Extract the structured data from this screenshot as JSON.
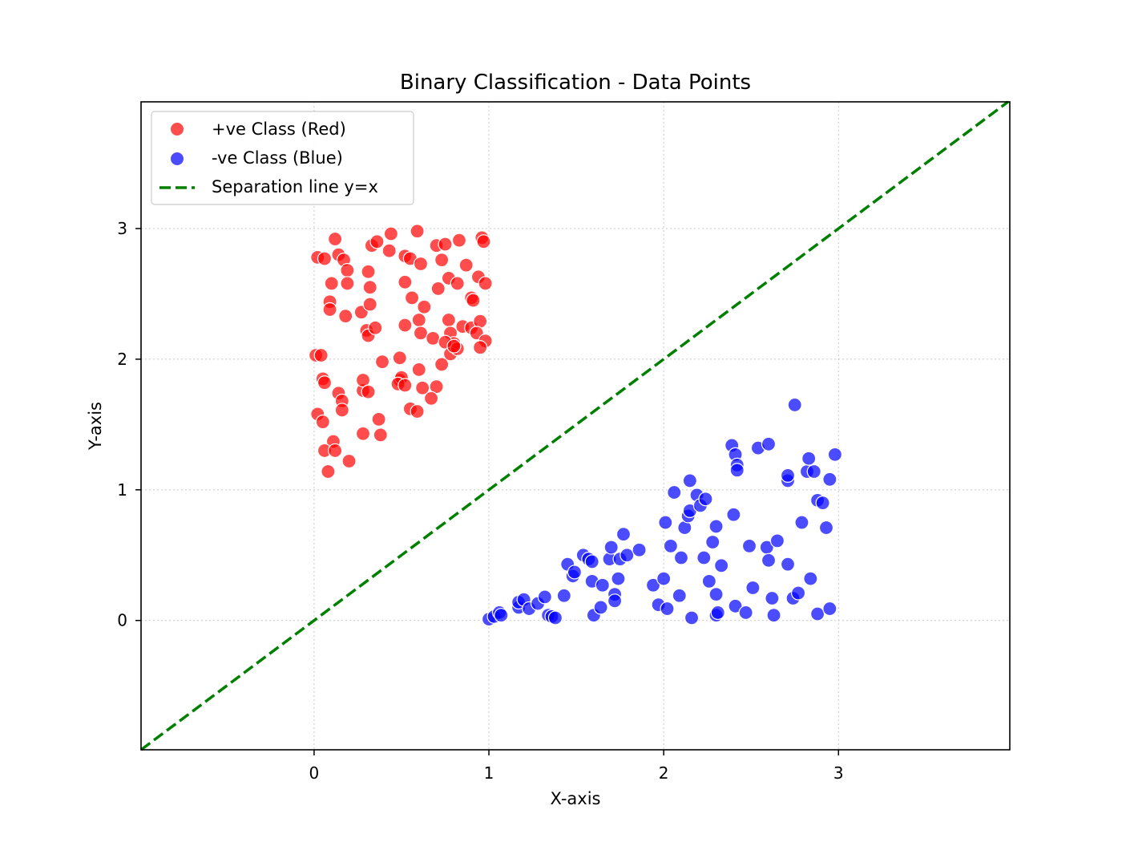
{
  "chart_data": {
    "type": "scatter",
    "title": "Binary Classification - Data Points",
    "xlabel": "X-axis",
    "ylabel": "Y-axis",
    "xlim": [
      -0.99,
      3.98
    ],
    "ylim": [
      -0.99,
      3.97
    ],
    "xticks": [
      0,
      1,
      2,
      3
    ],
    "yticks": [
      0,
      1,
      2,
      3
    ],
    "grid": true,
    "legend_position": "upper left",
    "legend": [
      "+ve Class (Red)",
      "-ve Class (Blue)",
      "Separation line y=x"
    ],
    "colors": {
      "positive": "#ff0000",
      "negative": "#0000ff",
      "line": "#008000"
    },
    "lines": [
      {
        "name": "Separation line y=x",
        "x": [
          -0.99,
          3.98
        ],
        "y": [
          -0.99,
          3.98
        ],
        "style": "dashed",
        "color": "#008000"
      }
    ],
    "series": [
      {
        "name": "+ve Class (Red)",
        "color": "#ff0000",
        "points": [
          [
            0.12,
            2.92
          ],
          [
            0.02,
            2.78
          ],
          [
            0.06,
            2.77
          ],
          [
            0.14,
            2.8
          ],
          [
            0.17,
            2.76
          ],
          [
            0.19,
            2.68
          ],
          [
            0.33,
            2.87
          ],
          [
            0.36,
            2.9
          ],
          [
            0.43,
            2.83
          ],
          [
            0.44,
            2.96
          ],
          [
            0.59,
            2.98
          ],
          [
            0.52,
            2.79
          ],
          [
            0.55,
            2.77
          ],
          [
            0.61,
            2.73
          ],
          [
            0.7,
            2.87
          ],
          [
            0.75,
            2.88
          ],
          [
            0.83,
            2.91
          ],
          [
            0.96,
            2.93
          ],
          [
            0.97,
            2.9
          ],
          [
            0.1,
            2.58
          ],
          [
            0.19,
            2.58
          ],
          [
            0.31,
            2.67
          ],
          [
            0.32,
            2.55
          ],
          [
            0.52,
            2.59
          ],
          [
            0.56,
            2.47
          ],
          [
            0.71,
            2.54
          ],
          [
            0.73,
            2.76
          ],
          [
            0.77,
            2.62
          ],
          [
            0.82,
            2.58
          ],
          [
            0.87,
            2.72
          ],
          [
            0.94,
            2.63
          ],
          [
            0.98,
            2.58
          ],
          [
            0.9,
            2.47
          ],
          [
            0.91,
            2.45
          ],
          [
            0.09,
            2.44
          ],
          [
            0.09,
            2.38
          ],
          [
            0.18,
            2.33
          ],
          [
            0.27,
            2.36
          ],
          [
            0.32,
            2.42
          ],
          [
            0.3,
            2.22
          ],
          [
            0.31,
            2.18
          ],
          [
            0.35,
            2.24
          ],
          [
            0.52,
            2.26
          ],
          [
            0.6,
            2.3
          ],
          [
            0.63,
            2.4
          ],
          [
            0.61,
            2.2
          ],
          [
            0.68,
            2.16
          ],
          [
            0.77,
            2.3
          ],
          [
            0.78,
            2.2
          ],
          [
            0.8,
            2.12
          ],
          [
            0.75,
            2.13
          ],
          [
            0.85,
            2.25
          ],
          [
            0.9,
            2.24
          ],
          [
            0.95,
            2.29
          ],
          [
            0.93,
            2.2
          ],
          [
            0.98,
            2.14
          ],
          [
            0.95,
            2.09
          ],
          [
            0.01,
            2.03
          ],
          [
            0.04,
            2.03
          ],
          [
            0.39,
            1.98
          ],
          [
            0.49,
            1.84
          ],
          [
            0.5,
            1.86
          ],
          [
            0.48,
            1.81
          ],
          [
            0.52,
            1.8
          ],
          [
            0.49,
            2.01
          ],
          [
            0.6,
            1.92
          ],
          [
            0.73,
            1.96
          ],
          [
            0.78,
            2.04
          ],
          [
            0.82,
            2.08
          ],
          [
            0.8,
            2.1
          ],
          [
            0.05,
            1.85
          ],
          [
            0.06,
            1.82
          ],
          [
            0.14,
            1.74
          ],
          [
            0.16,
            1.68
          ],
          [
            0.16,
            1.61
          ],
          [
            0.28,
            1.76
          ],
          [
            0.28,
            1.84
          ],
          [
            0.31,
            1.75
          ],
          [
            0.62,
            1.78
          ],
          [
            0.7,
            1.79
          ],
          [
            0.67,
            1.7
          ],
          [
            0.55,
            1.62
          ],
          [
            0.59,
            1.6
          ],
          [
            0.02,
            1.58
          ],
          [
            0.05,
            1.52
          ],
          [
            0.37,
            1.54
          ],
          [
            0.38,
            1.42
          ],
          [
            0.28,
            1.43
          ],
          [
            0.11,
            1.37
          ],
          [
            0.06,
            1.3
          ],
          [
            0.12,
            1.3
          ],
          [
            0.2,
            1.22
          ],
          [
            0.08,
            1.14
          ]
        ]
      },
      {
        "name": "-ve Class (Blue)",
        "color": "#0000ff",
        "points": [
          [
            1.0,
            0.01
          ],
          [
            1.03,
            0.03
          ],
          [
            1.06,
            0.06
          ],
          [
            1.07,
            0.04
          ],
          [
            1.17,
            0.1
          ],
          [
            1.17,
            0.14
          ],
          [
            1.2,
            0.16
          ],
          [
            1.23,
            0.09
          ],
          [
            1.28,
            0.13
          ],
          [
            1.32,
            0.18
          ],
          [
            1.34,
            0.04
          ],
          [
            1.36,
            0.03
          ],
          [
            1.38,
            0.02
          ],
          [
            1.43,
            0.19
          ],
          [
            1.45,
            0.43
          ],
          [
            1.48,
            0.34
          ],
          [
            1.49,
            0.37
          ],
          [
            1.54,
            0.5
          ],
          [
            1.57,
            0.47
          ],
          [
            1.59,
            0.45
          ],
          [
            1.59,
            0.3
          ],
          [
            1.6,
            0.04
          ],
          [
            1.64,
            0.1
          ],
          [
            1.65,
            0.27
          ],
          [
            1.69,
            0.47
          ],
          [
            1.7,
            0.56
          ],
          [
            1.72,
            0.2
          ],
          [
            1.72,
            0.15
          ],
          [
            1.74,
            0.32
          ],
          [
            1.75,
            0.47
          ],
          [
            1.77,
            0.66
          ],
          [
            1.79,
            0.5
          ],
          [
            1.86,
            0.54
          ],
          [
            1.94,
            0.27
          ],
          [
            1.97,
            0.12
          ],
          [
            2.0,
            0.32
          ],
          [
            2.01,
            0.75
          ],
          [
            2.02,
            0.09
          ],
          [
            2.04,
            0.57
          ],
          [
            2.06,
            0.98
          ],
          [
            2.09,
            0.19
          ],
          [
            2.1,
            0.48
          ],
          [
            2.12,
            0.71
          ],
          [
            2.14,
            0.8
          ],
          [
            2.15,
            0.84
          ],
          [
            2.15,
            1.07
          ],
          [
            2.16,
            0.02
          ],
          [
            2.19,
            0.96
          ],
          [
            2.21,
            0.88
          ],
          [
            2.23,
            0.48
          ],
          [
            2.24,
            0.93
          ],
          [
            2.26,
            0.3
          ],
          [
            2.28,
            0.6
          ],
          [
            2.3,
            0.72
          ],
          [
            2.3,
            0.2
          ],
          [
            2.3,
            0.04
          ],
          [
            2.31,
            0.06
          ],
          [
            2.33,
            0.42
          ],
          [
            2.39,
            1.34
          ],
          [
            2.4,
            0.81
          ],
          [
            2.41,
            0.11
          ],
          [
            2.41,
            1.27
          ],
          [
            2.42,
            1.19
          ],
          [
            2.42,
            1.15
          ],
          [
            2.47,
            0.06
          ],
          [
            2.49,
            0.57
          ],
          [
            2.51,
            0.25
          ],
          [
            2.54,
            1.32
          ],
          [
            2.6,
            1.35
          ],
          [
            2.59,
            0.56
          ],
          [
            2.6,
            0.46
          ],
          [
            2.62,
            0.17
          ],
          [
            2.63,
            0.04
          ],
          [
            2.65,
            0.61
          ],
          [
            2.71,
            1.07
          ],
          [
            2.71,
            1.11
          ],
          [
            2.71,
            0.43
          ],
          [
            2.74,
            0.17
          ],
          [
            2.75,
            1.65
          ],
          [
            2.77,
            0.21
          ],
          [
            2.79,
            0.75
          ],
          [
            2.82,
            1.14
          ],
          [
            2.83,
            1.24
          ],
          [
            2.84,
            0.32
          ],
          [
            2.86,
            1.14
          ],
          [
            2.88,
            0.05
          ],
          [
            2.88,
            0.92
          ],
          [
            2.91,
            0.9
          ],
          [
            2.93,
            0.71
          ],
          [
            2.95,
            0.09
          ],
          [
            2.95,
            1.08
          ],
          [
            2.98,
            1.27
          ]
        ]
      }
    ]
  }
}
